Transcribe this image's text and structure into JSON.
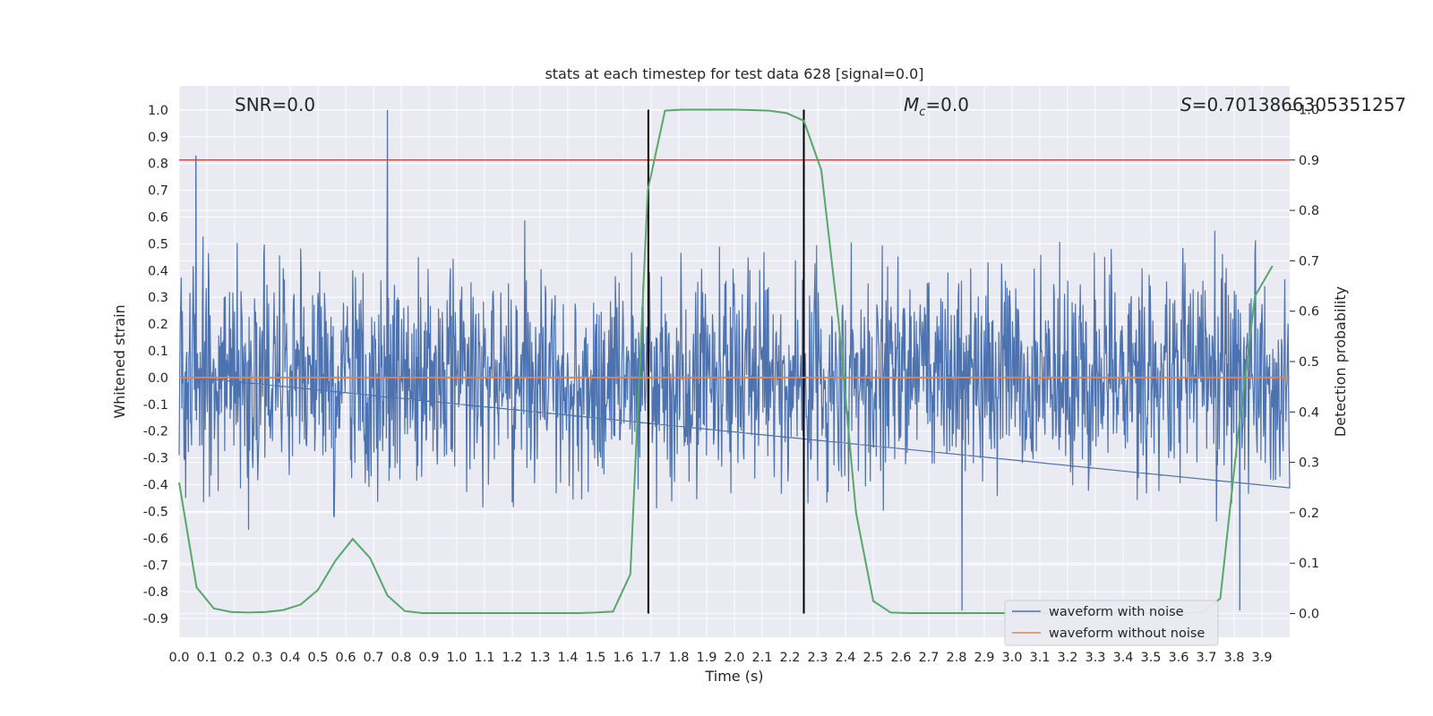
{
  "chart_data": {
    "type": "line",
    "title": "stats at each timestep for test data 628 [signal=0.0]",
    "xlabel": "Time (s)",
    "ylabel": "Whitened strain",
    "y2label": "Detection probability",
    "xlim": [
      0.0,
      4.0
    ],
    "ylim": [
      -0.97,
      1.09
    ],
    "y2lim": [
      -0.047,
      1.047
    ],
    "x_ticks": [
      0.0,
      0.1,
      0.2,
      0.3,
      0.4,
      0.5,
      0.6,
      0.7,
      0.8,
      0.9,
      1.0,
      1.1,
      1.2,
      1.3,
      1.4,
      1.5,
      1.6,
      1.7,
      1.8,
      1.9,
      2.0,
      2.1,
      2.2,
      2.3,
      2.4,
      2.5,
      2.6,
      2.7,
      2.8,
      2.9,
      3.0,
      3.1,
      3.2,
      3.3,
      3.4,
      3.5,
      3.6,
      3.7,
      3.8,
      3.9
    ],
    "y_ticks": [
      1.0,
      0.9,
      0.8,
      0.7,
      0.6,
      0.5,
      0.4,
      0.3,
      0.2,
      0.1,
      0.0,
      -0.1,
      -0.2,
      -0.3,
      -0.4,
      -0.5,
      -0.6,
      -0.7,
      -0.8,
      -0.9
    ],
    "y2_ticks": [
      1.0,
      0.9,
      0.8,
      0.7,
      0.6,
      0.5,
      0.4,
      0.3,
      0.2,
      0.1,
      0.0
    ],
    "grid": true,
    "legend_position": "bottom-right",
    "annotations": {
      "snr": "SNR=0.0",
      "mc_symbol": "M",
      "mc_sub": "c",
      "mc_value": "=0.0",
      "s_symbol": "S",
      "s_value": "=0.7013866305351257"
    },
    "series": [
      {
        "name": "waveform with noise",
        "color": "#4c72b0",
        "axis": "left",
        "noise_std": 0.2,
        "samples": 2048,
        "peaks": [
          [
            0.06,
            0.83
          ],
          [
            0.75,
            1.0
          ],
          [
            3.82,
            -0.87
          ],
          [
            2.82,
            -0.87
          ]
        ]
      },
      {
        "name": "waveform without noise",
        "color": "#dd8452",
        "axis": "left",
        "x": [
          0.0,
          4.0
        ],
        "y": [
          0.0,
          0.0
        ]
      },
      {
        "name": "",
        "color": "#55a868",
        "axis": "right",
        "x": [
          0.0,
          0.063,
          0.125,
          0.188,
          0.25,
          0.313,
          0.375,
          0.438,
          0.5,
          0.563,
          0.625,
          0.688,
          0.75,
          0.813,
          0.875,
          0.938,
          1.0,
          1.063,
          1.125,
          1.188,
          1.25,
          1.313,
          1.375,
          1.438,
          1.5,
          1.563,
          1.625,
          1.688,
          1.75,
          1.813,
          1.875,
          1.938,
          2.0,
          2.063,
          2.125,
          2.188,
          2.25,
          2.313,
          2.375,
          2.438,
          2.5,
          2.563,
          2.625,
          2.688,
          2.75,
          2.813,
          2.875,
          2.938,
          3.0,
          3.063,
          3.125,
          3.188,
          3.25,
          3.313,
          3.375,
          3.438,
          3.5,
          3.563,
          3.625,
          3.688,
          3.75,
          3.813,
          3.875,
          3.938
        ],
        "y": [
          0.26,
          0.052,
          0.01,
          0.003,
          0.002,
          0.003,
          0.007,
          0.018,
          0.047,
          0.105,
          0.148,
          0.11,
          0.036,
          0.005,
          0.001,
          0.001,
          0.001,
          0.001,
          0.001,
          0.001,
          0.001,
          0.001,
          0.001,
          0.001,
          0.002,
          0.004,
          0.078,
          0.84,
          0.998,
          1.0,
          1.0,
          1.0,
          1.0,
          0.999,
          0.998,
          0.993,
          0.978,
          0.88,
          0.58,
          0.2,
          0.025,
          0.002,
          0.001,
          0.001,
          0.001,
          0.001,
          0.001,
          0.001,
          0.001,
          0.001,
          0.001,
          0.001,
          0.001,
          0.001,
          0.001,
          0.001,
          0.001,
          0.001,
          0.001,
          0.003,
          0.03,
          0.35,
          0.63,
          0.69
        ]
      }
    ],
    "hlines": [
      {
        "y2": 0.9,
        "color": "#c44e52"
      }
    ],
    "vlines": [
      {
        "x": 1.69,
        "color": "#000000"
      },
      {
        "x": 2.25,
        "color": "#000000"
      }
    ]
  }
}
